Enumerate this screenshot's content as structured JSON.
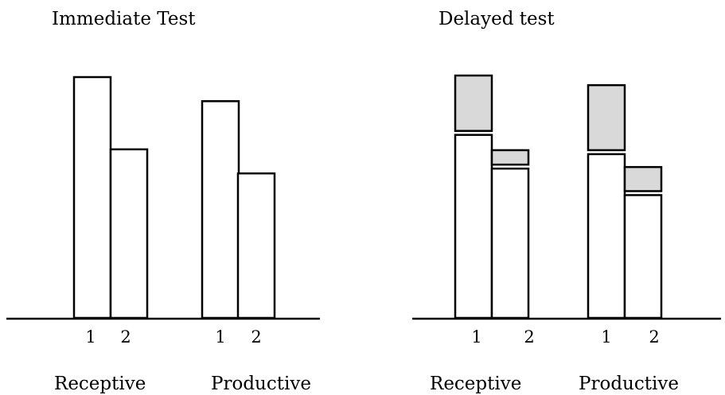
{
  "chart_data": [
    {
      "type": "bar",
      "title": "Immediate Test",
      "groups": [
        {
          "label": "Receptive",
          "categories": [
            "1",
            "2"
          ],
          "values": [
            100,
            70
          ]
        },
        {
          "label": "Productive",
          "categories": [
            "1",
            "2"
          ],
          "values": [
            90,
            60
          ]
        }
      ],
      "ylim": [
        0,
        100
      ],
      "grid": false,
      "legend": "none"
    },
    {
      "type": "bar",
      "title": "Delayed test",
      "stacked": true,
      "groups": [
        {
          "label": "Receptive",
          "categories": [
            "1",
            "2"
          ],
          "lower_values": [
            76,
            62
          ],
          "upper_values": [
            23,
            6
          ]
        },
        {
          "label": "Productive",
          "categories": [
            "1",
            "2"
          ],
          "lower_values": [
            68,
            51
          ],
          "upper_values": [
            27,
            10
          ]
        }
      ],
      "ylim": [
        0,
        100
      ],
      "grid": false,
      "legend": "none",
      "colors": {
        "upper": "#d9d9d9",
        "lower": "#ffffff",
        "stroke": "#000000"
      }
    }
  ]
}
